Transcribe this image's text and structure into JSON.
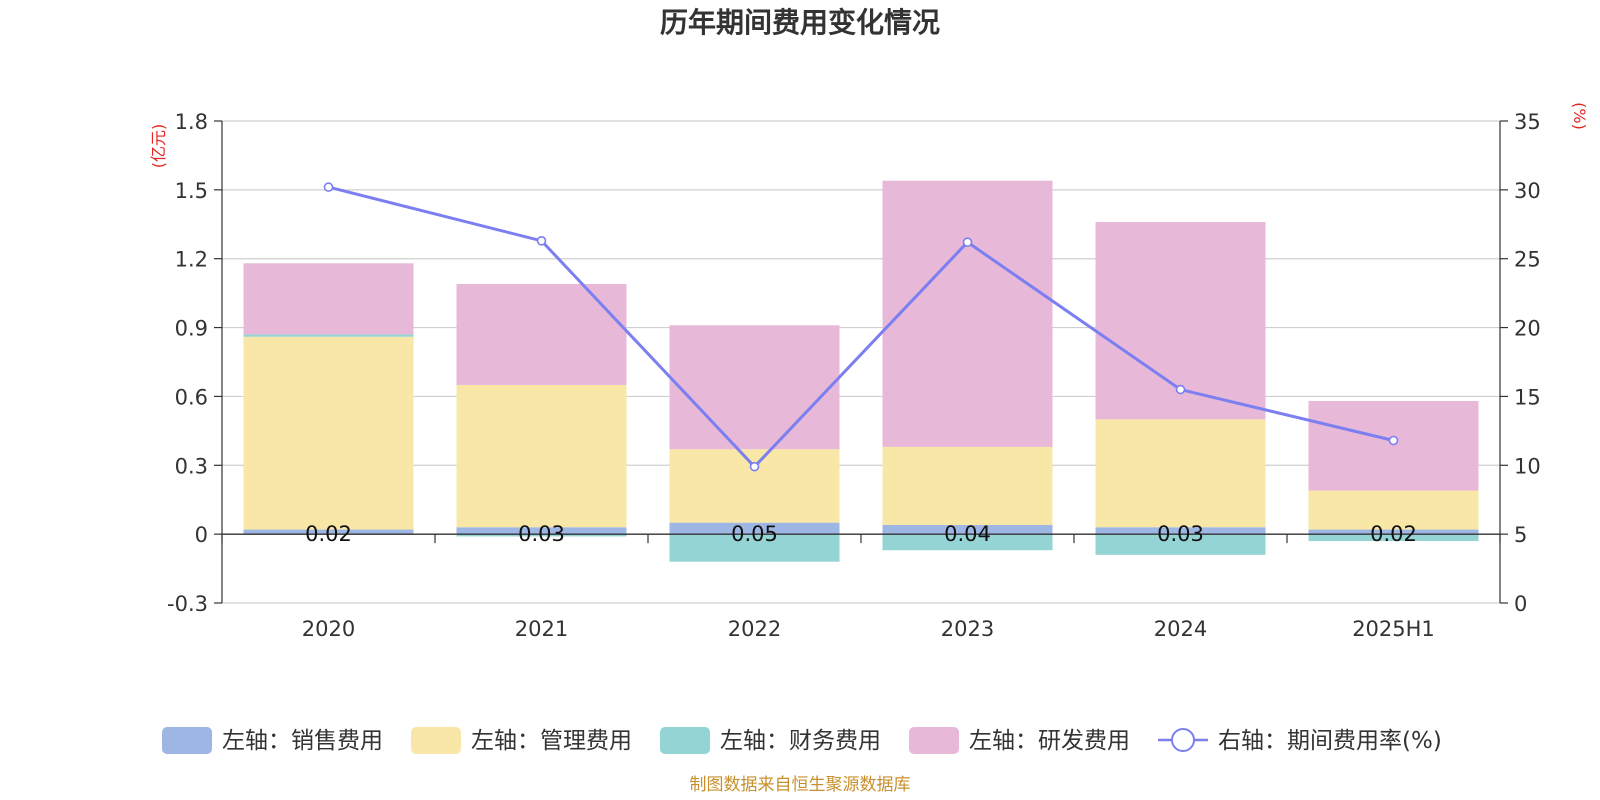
{
  "chart_data": {
    "type": "bar",
    "stacked": true,
    "title": "历年期间费用变化情况",
    "categories": [
      "2020",
      "2021",
      "2022",
      "2023",
      "2024",
      "2025H1"
    ],
    "y_left": {
      "unit": "(亿元)",
      "ylim": [
        -0.3,
        1.8
      ],
      "ticks": [
        "-0.3",
        "0",
        "0.3",
        "0.6",
        "0.9",
        "1.2",
        "1.5",
        "1.8"
      ]
    },
    "y_right": {
      "unit": "(%)",
      "ylim": [
        0,
        35
      ],
      "ticks": [
        "0",
        "5",
        "10",
        "15",
        "20",
        "25",
        "30",
        "35"
      ]
    },
    "grid": true,
    "legend_position": "bottom",
    "series": [
      {
        "name": "左轴：销售费用",
        "axis": "left",
        "color": "#9db6e4",
        "values": [
          0.02,
          0.03,
          0.05,
          0.04,
          0.03,
          0.02
        ],
        "labels": [
          "0.02",
          "0.03",
          "0.05",
          "0.04",
          "0.03",
          "0.02"
        ]
      },
      {
        "name": "左轴：管理费用",
        "axis": "left",
        "color": "#f9e7a7",
        "values": [
          0.84,
          0.62,
          0.32,
          0.34,
          0.47,
          0.17
        ]
      },
      {
        "name": "左轴：财务费用",
        "axis": "left",
        "color": "#94d4d5",
        "values": [
          0.01,
          -0.01,
          -0.12,
          -0.07,
          -0.09,
          -0.03
        ]
      },
      {
        "name": "左轴：研发费用",
        "axis": "left",
        "color": "#e8b8d9",
        "values": [
          0.31,
          0.44,
          0.54,
          1.16,
          0.86,
          0.39
        ]
      },
      {
        "name": "右轴：期间费用率(%)",
        "axis": "right",
        "type": "line",
        "color": "#7b7ff0",
        "values": [
          30.2,
          26.3,
          9.9,
          26.2,
          15.5,
          11.8
        ]
      }
    ],
    "source": "制图数据来自恒生聚源数据库"
  }
}
